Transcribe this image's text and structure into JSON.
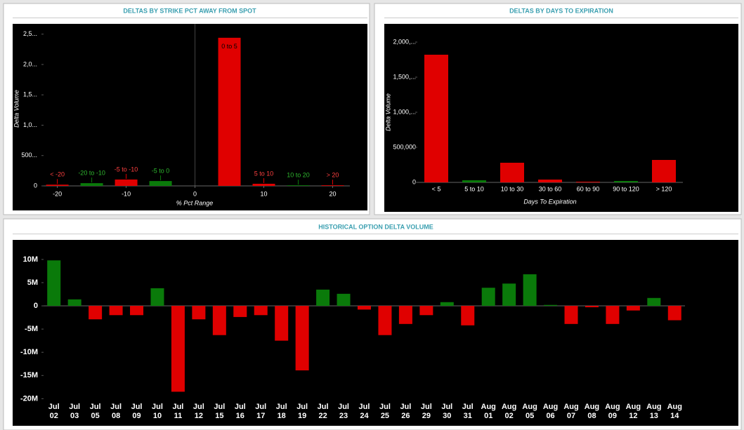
{
  "chart_data": [
    {
      "type": "bar",
      "title": "DELTAS BY STRIKE PCT AWAY FROM SPOT",
      "x": [
        -20,
        -15,
        -10,
        -5,
        5,
        10,
        15,
        20
      ],
      "categories": [
        "< -20",
        "-20 to -10",
        "-5 to -10",
        "-5 to 0",
        "0 to 5",
        "5 to 10",
        "10 to 20",
        "> 20"
      ],
      "values": [
        20000,
        45000,
        105000,
        80000,
        2440000,
        35000,
        10000,
        10000
      ],
      "colors": [
        "#e00000",
        "#0a7a0a",
        "#e00000",
        "#0a7a0a",
        "#e00000",
        "#e00000",
        "#0a7a0a",
        "#e00000"
      ],
      "xlim": [
        -22,
        22.5
      ],
      "xticks": [
        -20,
        -10,
        0,
        10,
        20
      ],
      "ylim": [
        0,
        2600000
      ],
      "yticks": [
        0,
        {
          "value": 500000,
          "label": "500..."
        },
        {
          "value": 1000000,
          "label": "1,0..."
        },
        {
          "value": 1500000,
          "label": "1,5..."
        },
        {
          "value": 2000000,
          "label": "2,0..."
        },
        {
          "value": 2500000,
          "label": "2,5..."
        }
      ],
      "xlabel": "% Pct Range",
      "ylabel": "Delta Volume"
    },
    {
      "type": "bar",
      "title": "DELTAS BY DAYS TO EXPIRATION",
      "categories": [
        "< 5",
        "5 to 10",
        "10 to 30",
        "30 to 60",
        "60 to 90",
        "90 to 120",
        "> 120"
      ],
      "values": [
        1820000,
        30000,
        280000,
        40000,
        10000,
        20000,
        320000
      ],
      "colors": [
        "#e00000",
        "#0a7a0a",
        "#e00000",
        "#e00000",
        "#e00000",
        "#0a7a0a",
        "#e00000"
      ],
      "ylim": [
        0,
        2150000
      ],
      "yticks": [
        0,
        {
          "value": 500000,
          "label": "500,000"
        },
        {
          "value": 1000000,
          "label": "1,000,..."
        },
        {
          "value": 1500000,
          "label": "1,500,..."
        },
        {
          "value": 2000000,
          "label": "2,000,..."
        }
      ],
      "xlabel": "Days To Expiration",
      "ylabel": "Delta Volume"
    },
    {
      "type": "bar",
      "title": "HISTORICAL OPTION DELTA VOLUME",
      "categories": [
        "Jul 02",
        "Jul 03",
        "Jul 05",
        "Jul 08",
        "Jul 09",
        "Jul 10",
        "Jul 11",
        "Jul 12",
        "Jul 15",
        "Jul 16",
        "Jul 17",
        "Jul 18",
        "Jul 19",
        "Jul 22",
        "Jul 23",
        "Jul 24",
        "Jul 25",
        "Jul 26",
        "Jul 29",
        "Jul 30",
        "Jul 31",
        "Aug 01",
        "Aug 02",
        "Aug 05",
        "Aug 06",
        "Aug 07",
        "Aug 08",
        "Aug 09",
        "Aug 12",
        "Aug 13",
        "Aug 14"
      ],
      "values": [
        9800000,
        1400000,
        -2900000,
        -2000000,
        -2000000,
        3800000,
        -18500000,
        -2900000,
        -6300000,
        -2400000,
        -2000000,
        -7500000,
        -13900000,
        3500000,
        2600000,
        -800000,
        -6300000,
        -3900000,
        -2000000,
        800000,
        -4200000,
        3900000,
        4800000,
        6800000,
        200000,
        -3900000,
        -300000,
        -3900000,
        -1000000,
        1700000,
        -3100000
      ],
      "positive_color": "#0a7a0a",
      "negative_color": "#e00000",
      "ylim": [
        -21000000,
        13000000
      ],
      "yticks": [
        {
          "value": -20000000,
          "label": "-20M"
        },
        {
          "value": -15000000,
          "label": "-15M"
        },
        {
          "value": -10000000,
          "label": "-10M"
        },
        {
          "value": -5000000,
          "label": "-5M"
        },
        0,
        {
          "value": 5000000,
          "label": "5M"
        },
        {
          "value": 10000000,
          "label": "10M"
        }
      ]
    }
  ]
}
